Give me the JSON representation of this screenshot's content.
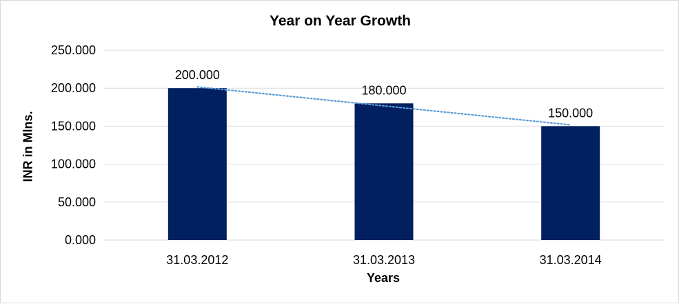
{
  "chart_data": {
    "type": "bar",
    "title": "Year on Year Growth",
    "xlabel": "Years",
    "ylabel": "INR in Mlns.",
    "categories": [
      "31.03.2012",
      "31.03.2013",
      "31.03.2014"
    ],
    "values": [
      200,
      180,
      150
    ],
    "data_labels": [
      "200.000",
      "180.000",
      "150.000"
    ],
    "ylim": [
      0,
      250
    ],
    "yticks": [
      0,
      50,
      100,
      150,
      200,
      250
    ],
    "ytick_labels": [
      "0.000",
      "50.000",
      "100.000",
      "150.000",
      "200.000",
      "250.000"
    ],
    "grid": true,
    "legend": "none",
    "trendline": {
      "type": "linear",
      "style": "dotted"
    },
    "colors": {
      "bar": "#002060",
      "trendline": "#5b9bd5",
      "grid": "#d9d9d9"
    }
  }
}
